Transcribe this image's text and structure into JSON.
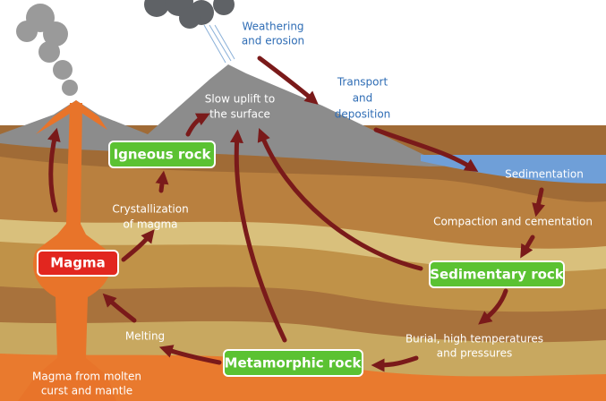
{
  "boxes": [
    "Igneous rock",
    "Magma",
    "Sedimentary rock",
    "Metamorphic rock"
  ],
  "labels": {
    "weathering": [
      "Weathering",
      "and erosion"
    ],
    "transport": [
      "Transport",
      "and",
      "deposition"
    ],
    "uplift": [
      "Slow uplift to",
      "the surface"
    ],
    "sedimentation": [
      "Sedimentation"
    ],
    "compaction": [
      "Compaction and cementation"
    ],
    "crystallization": [
      "Crystallization",
      "of magma"
    ],
    "melting": [
      "Melting"
    ],
    "burial": [
      "Burial, high temperatures",
      "and pressures"
    ],
    "magma_source": [
      "Magma from molten",
      "curst and mantle"
    ]
  }
}
